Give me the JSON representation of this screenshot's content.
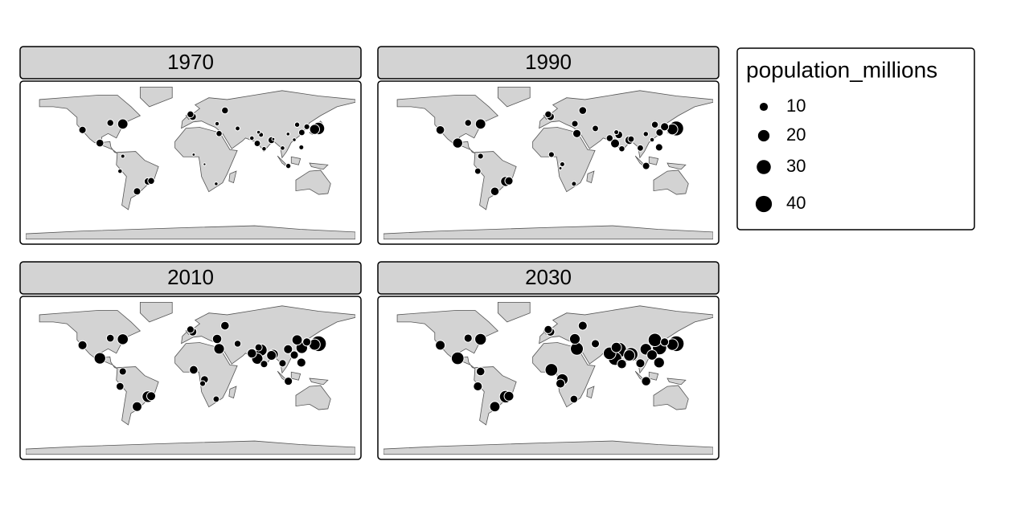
{
  "chart_data": {
    "type": "bubble-map",
    "lon": [
      139.7,
      135.5,
      -74,
      -99,
      -118,
      -46.6,
      -43,
      -58.4,
      121.5,
      116.4,
      88.4,
      72.9,
      77,
      67,
      90.4,
      31.2,
      3.4,
      37.6,
      2.35,
      -0.1,
      29,
      106.8,
      121,
      127,
      -77,
      -74,
      15.3,
      106.5,
      113.3,
      51.4,
      100.5,
      80.3,
      74.3,
      13.2,
      -87.6,
      28
    ],
    "lat": [
      35.7,
      34.7,
      40.7,
      19.4,
      34,
      -23.5,
      -22.9,
      -34.6,
      31.2,
      39.9,
      22.6,
      19,
      28.6,
      24.9,
      23.8,
      30,
      6.5,
      55.8,
      48.9,
      51.5,
      41,
      -6.2,
      14.6,
      37.6,
      -12,
      4.7,
      -4.3,
      29.5,
      23.1,
      35.7,
      13.8,
      13,
      31.5,
      -8.8,
      41.9,
      -26.2
    ],
    "panels": [
      {
        "title": "1970",
        "values": [
          23,
          15,
          16,
          9,
          8,
          8,
          7,
          8,
          6,
          4,
          7,
          6,
          3.5,
          3,
          1.4,
          5.5,
          1.4,
          7,
          8,
          7,
          2.8,
          4,
          3.5,
          5,
          3,
          2.4,
          1.1,
          2,
          2,
          3.3,
          3,
          3,
          2,
          null,
          7,
          2
        ]
      },
      {
        "title": "1990",
        "values": [
          33,
          18,
          16,
          15,
          11,
          15,
          10,
          11,
          8,
          7,
          11,
          12,
          9,
          7,
          6,
          10,
          5,
          9,
          9,
          7,
          6.5,
          8,
          8,
          10,
          6,
          5,
          3.5,
          4,
          3,
          6,
          6,
          5.5,
          3.5,
          1.5,
          7,
          3.5
        ]
      },
      {
        "title": "2010",
        "values": [
          37,
          19,
          18,
          20,
          12,
          20,
          12,
          14,
          20,
          16,
          14,
          19,
          22,
          13,
          15,
          17,
          11,
          11,
          10,
          8,
          13,
          10,
          12,
          10,
          9,
          8,
          9,
          12,
          10,
          7,
          8,
          8,
          8,
          5,
          9,
          6
        ]
      },
      {
        "title": "2030",
        "values": [
          37,
          20,
          20,
          24,
          14,
          23,
          14,
          16,
          30,
          27,
          19,
          27,
          36,
          24,
          28,
          25,
          24,
          12,
          11,
          10,
          17,
          13,
          17,
          10,
          12,
          11,
          20,
          20,
          16,
          10,
          12,
          13,
          16,
          12,
          10,
          9
        ]
      }
    ],
    "legend": {
      "title": "population_millions",
      "sizes": [
        10,
        20,
        30,
        40
      ]
    },
    "color": "#000000"
  }
}
